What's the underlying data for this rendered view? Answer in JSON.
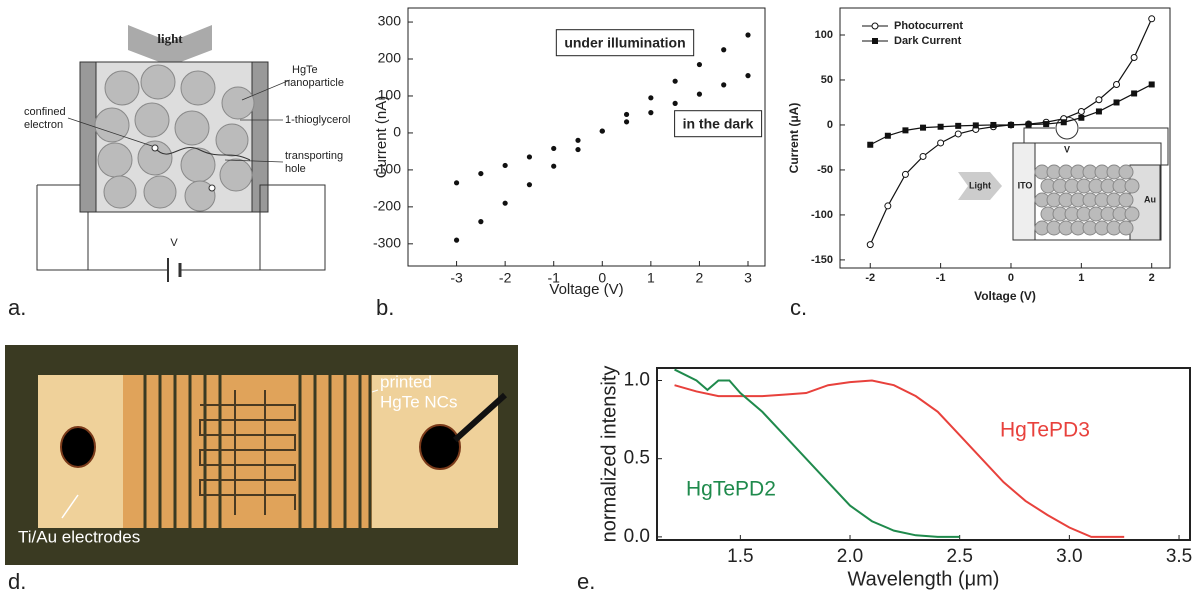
{
  "panel_labels": [
    "a.",
    "b.",
    "c.",
    "d.",
    "e."
  ],
  "diagram_a": {
    "light": "light",
    "nanoparticle": [
      "HgTe",
      "nanoparticle"
    ],
    "electron": [
      "confined",
      "electron"
    ],
    "ligand": "1-thioglycerol",
    "hole": [
      "transporting",
      "hole"
    ],
    "voltage": "V"
  },
  "photo_d": {
    "nc_label": [
      "printed",
      "HgTe NCs"
    ],
    "electrode_label": "Ti/Au electrodes"
  },
  "chart_data": [
    {
      "type": "scatter",
      "xlabel": "Voltage (V)",
      "ylabel": "Current (nA)",
      "annotations": [
        "under illumination",
        "in the dark"
      ],
      "x": [
        -3,
        -2.5,
        -2,
        -1.5,
        -1,
        -0.5,
        0,
        0.5,
        1,
        1.5,
        2,
        2.5,
        3
      ],
      "series": [
        {
          "color": "#111111",
          "marker": "dot",
          "line": false,
          "values": [
            -290,
            -240,
            -190,
            -140,
            -90,
            -45,
            5,
            50,
            95,
            140,
            185,
            225,
            265
          ]
        },
        {
          "color": "#111111",
          "marker": "dot",
          "line": false,
          "values": [
            -135,
            -110,
            -88,
            -65,
            -42,
            -20,
            5,
            30,
            55,
            80,
            105,
            130,
            155
          ]
        }
      ],
      "xlim": [
        -4,
        3.35
      ],
      "ylim": [
        -360,
        338
      ],
      "xticks": [
        -3,
        -2,
        -1,
        0,
        1,
        2,
        3
      ],
      "yticks": [
        -300,
        -200,
        -100,
        0,
        100,
        200,
        300
      ]
    },
    {
      "type": "line",
      "xlabel": "Voltage (V)",
      "ylabel": "Current (μA)",
      "annotations": [
        "Light",
        "ITO",
        "Au",
        "V"
      ],
      "legend": "upper-left",
      "x": [
        -2,
        -1.75,
        -1.5,
        -1.25,
        -1,
        -0.75,
        -0.5,
        -0.25,
        0,
        0.25,
        0.5,
        0.75,
        1,
        1.25,
        1.5,
        1.75,
        2
      ],
      "series": [
        {
          "name": "Photocurrent",
          "color": "#111111",
          "marker": "open-circle",
          "line": true,
          "values": [
            -133,
            -90,
            -55,
            -35,
            -20,
            -10,
            -5,
            -2,
            0,
            1,
            3,
            7,
            15,
            28,
            45,
            75,
            118
          ]
        },
        {
          "name": "Dark Current",
          "color": "#111111",
          "marker": "square",
          "line": true,
          "values": [
            -22,
            -12,
            -6,
            -3,
            -2,
            -1,
            -0.5,
            0,
            0,
            0.5,
            1,
            3,
            8,
            15,
            25,
            35,
            45
          ]
        }
      ],
      "xlim": [
        -2.43,
        2.26
      ],
      "ylim": [
        -159,
        130
      ],
      "xticks": [
        -2,
        -1,
        0,
        1,
        2
      ],
      "yticks": [
        -150,
        -100,
        -50,
        0,
        50,
        100
      ]
    },
    {
      "type": "line",
      "xlabel": "Wavelength (μm)",
      "ylabel": "normalized intensity",
      "legend": "on-curve",
      "series": [
        {
          "name": "HgTePD3",
          "color": "#e8413c",
          "marker": "none",
          "line": true,
          "x": [
            1.2,
            1.3,
            1.4,
            1.5,
            1.6,
            1.7,
            1.8,
            1.9,
            2.0,
            2.1,
            2.2,
            2.3,
            2.4,
            2.5,
            2.6,
            2.7,
            2.8,
            2.9,
            3.0,
            3.1,
            3.2,
            3.25
          ],
          "values": [
            0.97,
            0.93,
            0.9,
            0.9,
            0.9,
            0.91,
            0.92,
            0.97,
            0.99,
            1.0,
            0.97,
            0.9,
            0.8,
            0.65,
            0.5,
            0.35,
            0.23,
            0.14,
            0.06,
            0.0,
            0.0,
            0.0
          ]
        },
        {
          "name": "HgTePD2",
          "color": "#1f8a4c",
          "marker": "none",
          "line": true,
          "x": [
            1.2,
            1.3,
            1.35,
            1.4,
            1.45,
            1.5,
            1.6,
            1.7,
            1.8,
            1.9,
            2.0,
            2.1,
            2.2,
            2.3,
            2.4,
            2.5
          ],
          "values": [
            1.07,
            1.0,
            0.94,
            1.0,
            1.0,
            0.92,
            0.8,
            0.65,
            0.5,
            0.35,
            0.2,
            0.1,
            0.04,
            0.01,
            0,
            0
          ]
        }
      ],
      "xlim": [
        1.12,
        3.55
      ],
      "ylim": [
        -0.02,
        1.08
      ],
      "xticks": [
        1.5,
        {
          "value": 2,
          "label": "2.0"
        },
        2.5,
        {
          "value": 3,
          "label": "3.0"
        },
        3.5
      ],
      "yticks": [
        {
          "value": 0,
          "label": "0.0"
        },
        0.5,
        {
          "value": 1,
          "label": "1.0"
        }
      ]
    }
  ]
}
